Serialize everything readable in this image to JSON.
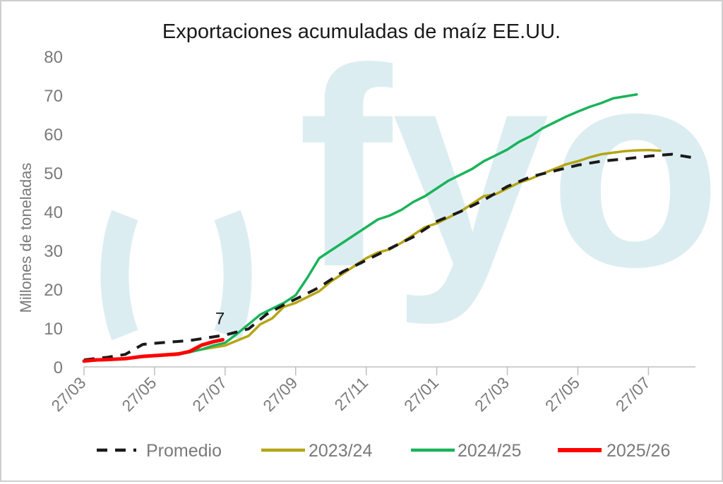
{
  "colors": {
    "promedio": "#1a1a1a",
    "s2023": "#b5a514",
    "s2024": "#1ab35a",
    "s2025": "#ff0000",
    "watermark": "#dcedf2",
    "axis_text": "#7a7a7a"
  },
  "watermark_text": "fyo",
  "chart_data": {
    "type": "line",
    "title": "Exportaciones acumuladas de maíz EE.UU.",
    "ylabel": "Millones de toneladas",
    "xlabel": "",
    "ylim": [
      0,
      80
    ],
    "xlim": [
      0,
      52
    ],
    "y_ticks": [
      "0",
      "10",
      "20",
      "30",
      "40",
      "50",
      "60",
      "70",
      "80"
    ],
    "x_ticks": [
      {
        "label": "27/03",
        "x": 0
      },
      {
        "label": "27/05",
        "x": 6
      },
      {
        "label": "27/07",
        "x": 12
      },
      {
        "label": "27/09",
        "x": 18
      },
      {
        "label": "27/11",
        "x": 24
      },
      {
        "label": "27/01",
        "x": 30
      },
      {
        "label": "27/03",
        "x": 36
      },
      {
        "label": "27/05",
        "x": 42
      },
      {
        "label": "27/07",
        "x": 48
      }
    ],
    "legend_position": "bottom",
    "annotation": {
      "text": "7",
      "series": "2025/26"
    },
    "series": [
      {
        "name": "Promedio",
        "style": "dashed",
        "points": [
          [
            0,
            1.8
          ],
          [
            2,
            2.5
          ],
          [
            3.5,
            3.2
          ],
          [
            5,
            5.8
          ],
          [
            6.5,
            6.2
          ],
          [
            9,
            6.8
          ],
          [
            12,
            8.2
          ],
          [
            14,
            9.8
          ],
          [
            15.5,
            13.5
          ],
          [
            17,
            16
          ],
          [
            18.5,
            18.2
          ],
          [
            20,
            20.5
          ],
          [
            22,
            24.5
          ],
          [
            24,
            27.5
          ],
          [
            26,
            30.5
          ],
          [
            28,
            33.5
          ],
          [
            30,
            37.5
          ],
          [
            32,
            40
          ],
          [
            34,
            43
          ],
          [
            36,
            46.5
          ],
          [
            38,
            49
          ],
          [
            40,
            50.5
          ],
          [
            42,
            52
          ],
          [
            44,
            53
          ],
          [
            46,
            53.6
          ],
          [
            48,
            54.3
          ],
          [
            50,
            54.8
          ],
          [
            52,
            53.8
          ]
        ]
      },
      {
        "name": "2023/24",
        "style": "solid",
        "points": [
          [
            0,
            1.5
          ],
          [
            2,
            1.8
          ],
          [
            4,
            2.2
          ],
          [
            6,
            3
          ],
          [
            8,
            3.5
          ],
          [
            10,
            4.5
          ],
          [
            12,
            5.5
          ],
          [
            14,
            8
          ],
          [
            15,
            11
          ],
          [
            16,
            12.5
          ],
          [
            17,
            15.5
          ],
          [
            18,
            16.5
          ],
          [
            19,
            18
          ],
          [
            20,
            19.5
          ],
          [
            21,
            22
          ],
          [
            22,
            24
          ],
          [
            23,
            26
          ],
          [
            24,
            28
          ],
          [
            25,
            29.5
          ],
          [
            26,
            30.3
          ],
          [
            27,
            32
          ],
          [
            28,
            34
          ],
          [
            29,
            36
          ],
          [
            30,
            37
          ],
          [
            31,
            38.5
          ],
          [
            32,
            40
          ],
          [
            33,
            42
          ],
          [
            34,
            44
          ],
          [
            35,
            44.5
          ],
          [
            36,
            46
          ],
          [
            37,
            47.5
          ],
          [
            38,
            48.5
          ],
          [
            39,
            49.8
          ],
          [
            40,
            51
          ],
          [
            41,
            52.2
          ],
          [
            42,
            53
          ],
          [
            43,
            54
          ],
          [
            44,
            54.8
          ],
          [
            45,
            55.2
          ],
          [
            46,
            55.6
          ],
          [
            47,
            55.8
          ],
          [
            48,
            55.9
          ],
          [
            49,
            55.7
          ]
        ]
      },
      {
        "name": "2024/25",
        "style": "solid",
        "points": [
          [
            0,
            1.6
          ],
          [
            2,
            1.8
          ],
          [
            4,
            2.3
          ],
          [
            6,
            2.8
          ],
          [
            8,
            3.2
          ],
          [
            9,
            3.8
          ],
          [
            10,
            4.5
          ],
          [
            11,
            5.5
          ],
          [
            12,
            6.2
          ],
          [
            13,
            8.5
          ],
          [
            14,
            11
          ],
          [
            15,
            13.5
          ],
          [
            16,
            15
          ],
          [
            17,
            16.5
          ],
          [
            18,
            18.5
          ],
          [
            19,
            23
          ],
          [
            20,
            28
          ],
          [
            21,
            30
          ],
          [
            22,
            32
          ],
          [
            23,
            34
          ],
          [
            24,
            36
          ],
          [
            25,
            38
          ],
          [
            26,
            39
          ],
          [
            27,
            40.5
          ],
          [
            28,
            42.5
          ],
          [
            29,
            44
          ],
          [
            30,
            46
          ],
          [
            31,
            48
          ],
          [
            32,
            49.5
          ],
          [
            33,
            51
          ],
          [
            34,
            53
          ],
          [
            35,
            54.5
          ],
          [
            36,
            56
          ],
          [
            37,
            58
          ],
          [
            38,
            59.5
          ],
          [
            39,
            61.5
          ],
          [
            40,
            63
          ],
          [
            41,
            64.5
          ],
          [
            42,
            65.8
          ],
          [
            43,
            67
          ],
          [
            44,
            68
          ],
          [
            45,
            69.2
          ],
          [
            46,
            69.7
          ],
          [
            47,
            70.2
          ]
        ]
      },
      {
        "name": "2025/26",
        "style": "solid",
        "points": [
          [
            0,
            1.5
          ],
          [
            1,
            1.8
          ],
          [
            2,
            1.9
          ],
          [
            3.5,
            2.1
          ],
          [
            5,
            2.7
          ],
          [
            6.5,
            3
          ],
          [
            8,
            3.3
          ],
          [
            9,
            4
          ],
          [
            10,
            5.6
          ],
          [
            11,
            6.5
          ],
          [
            11.8,
            7
          ]
        ]
      }
    ]
  }
}
